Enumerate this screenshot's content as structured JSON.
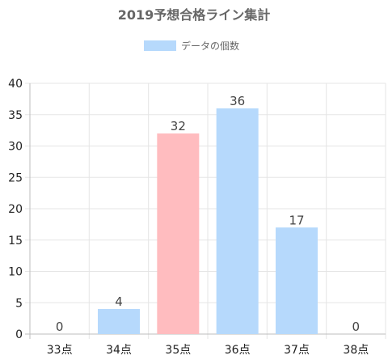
{
  "chart_data": {
    "type": "bar",
    "title": "2019予想合格ライン集計",
    "categories": [
      "33点",
      "34点",
      "35点",
      "36点",
      "37点",
      "38点"
    ],
    "series": [
      {
        "name": "データの個数",
        "values": [
          0,
          4,
          32,
          36,
          17,
          0
        ]
      }
    ],
    "ylim": [
      0,
      40
    ],
    "yticks": [
      "0",
      "5",
      "10",
      "15",
      "20",
      "25",
      "30",
      "35",
      "40"
    ],
    "grid": true,
    "legend_position": "top",
    "highlight_index": 2,
    "colors": {
      "bar": "#b6d9fc",
      "bar_highlight": "#ffbcbf",
      "grid": "#e5e5e5",
      "axis": "#bdbdbd"
    }
  }
}
